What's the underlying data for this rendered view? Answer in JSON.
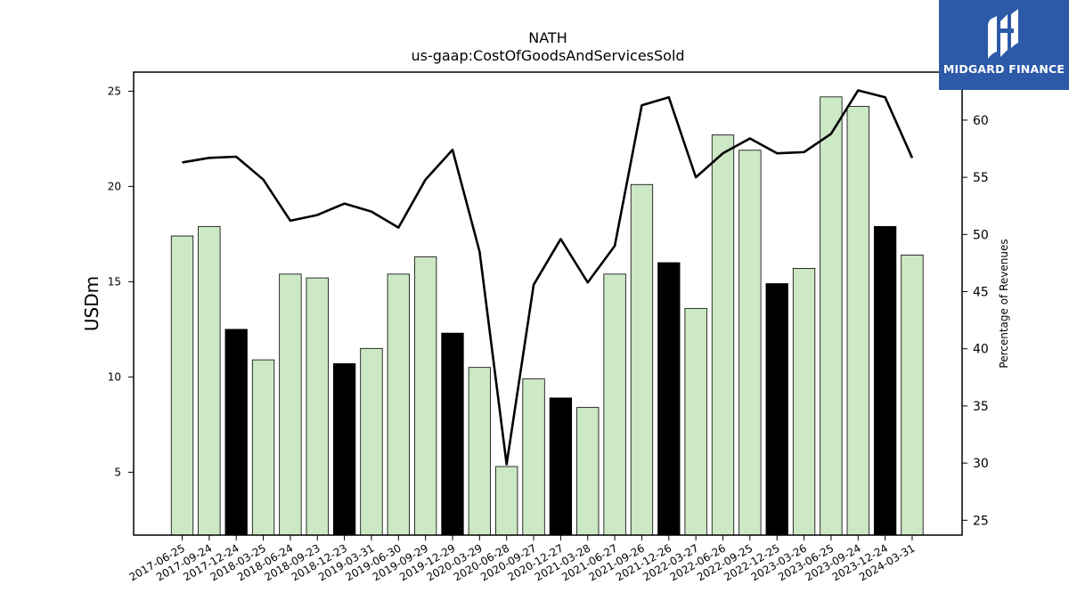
{
  "chart_data": {
    "type": "bar",
    "title": "NATH",
    "subtitle": "us-gaap:CostOfGoodsAndServicesSold",
    "ylabel": "USDm",
    "y2label": "Percentage of Revenues",
    "ylim": [
      1.7,
      26.0
    ],
    "y2lim": [
      23.7,
      64.2
    ],
    "yticks": [
      5,
      10,
      15,
      20,
      25
    ],
    "y2ticks": [
      25,
      30,
      35,
      40,
      45,
      50,
      55,
      60
    ],
    "categories": [
      "2017-06-25",
      "2017-09-24",
      "2017-12-24",
      "2018-03-25",
      "2018-06-24",
      "2018-09-23",
      "2018-12-23",
      "2019-03-31",
      "2019-06-30",
      "2019-09-29",
      "2019-12-29",
      "2020-03-29",
      "2020-06-28",
      "2020-09-27",
      "2020-12-27",
      "2021-03-28",
      "2021-06-27",
      "2021-09-26",
      "2021-12-26",
      "2022-03-27",
      "2022-06-26",
      "2022-09-25",
      "2022-12-25",
      "2023-03-26",
      "2023-06-25",
      "2023-09-24",
      "2023-12-24",
      "2024-03-31"
    ],
    "series": [
      {
        "values": [
          17.4,
          17.9,
          12.5,
          10.9,
          15.4,
          15.2,
          10.7,
          11.5,
          15.4,
          16.3,
          12.3,
          10.5,
          5.3,
          9.9,
          8.9,
          8.4,
          15.4,
          20.1,
          16.0,
          13.6,
          22.7,
          21.9,
          14.9,
          15.7,
          24.7,
          24.2,
          17.9,
          16.4
        ],
        "highlight": [
          false,
          false,
          true,
          false,
          false,
          false,
          true,
          false,
          false,
          false,
          true,
          false,
          false,
          false,
          true,
          false,
          false,
          false,
          true,
          false,
          false,
          false,
          true,
          false,
          false,
          false,
          true,
          false
        ]
      },
      {
        "type": "line",
        "values": [
          56.3,
          56.7,
          56.8,
          54.8,
          51.2,
          51.7,
          52.7,
          52.0,
          50.6,
          54.8,
          57.4,
          48.5,
          29.9,
          45.6,
          49.6,
          45.8,
          49.0,
          61.3,
          62.0,
          55.0,
          57.1,
          58.4,
          57.1,
          57.2,
          58.8,
          62.6,
          62.0,
          56.7
        ]
      }
    ],
    "colors": {
      "bar": "#cce8c4",
      "bar_highlight": "#000000",
      "bar_edge": "#000000",
      "line": "#000000"
    }
  },
  "logo": {
    "text": "MIDGARD FINANCE",
    "background": "#2c5aa8"
  }
}
